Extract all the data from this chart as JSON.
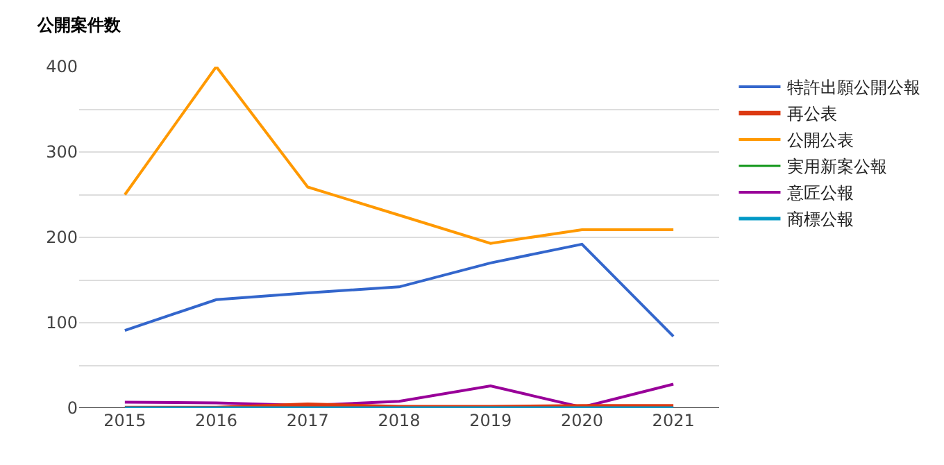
{
  "chart_data": {
    "type": "line",
    "title": "公開案件数",
    "categories": [
      "2015",
      "2016",
      "2017",
      "2018",
      "2019",
      "2020",
      "2021"
    ],
    "series": [
      {
        "name": "特許出願公開公報",
        "color": "#3366cc",
        "values": [
          91,
          127,
          135,
          142,
          170,
          192,
          84
        ]
      },
      {
        "name": "再公表",
        "color": "#dc3912",
        "values": [
          0,
          0,
          4,
          1,
          1,
          2,
          2
        ]
      },
      {
        "name": "公開公表",
        "color": "#ff9900",
        "values": [
          250,
          400,
          259,
          226,
          193,
          209,
          209
        ]
      },
      {
        "name": "実用新案公報",
        "color": "#109618",
        "values": [
          null,
          null,
          null,
          null,
          null,
          null,
          null
        ]
      },
      {
        "name": "意匠公報",
        "color": "#990099",
        "values": [
          7,
          6,
          3,
          8,
          26,
          1,
          28
        ]
      },
      {
        "name": "商標公報",
        "color": "#0099c6",
        "values": [
          0,
          0,
          0,
          0,
          0,
          0,
          0
        ]
      }
    ],
    "ylim": [
      0,
      400
    ],
    "yticks": [
      0,
      {
        "value": 50,
        "label": null
      },
      100,
      {
        "value": 150,
        "label": null
      },
      200,
      {
        "value": 250,
        "label": null
      },
      300,
      {
        "value": 350,
        "label": null
      },
      400
    ],
    "grid": "y",
    "legend": "right",
    "marker": "none",
    "line_style": "solid"
  }
}
